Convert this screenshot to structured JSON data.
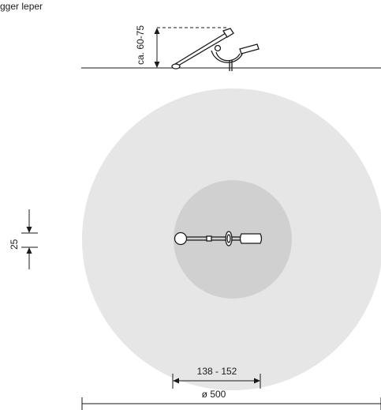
{
  "header_text": "gger leper",
  "dimensions": {
    "height_label": "ca. 60-75",
    "offset_label": "25",
    "span_label": "138 - 152",
    "diameter_label": "ø 500"
  },
  "colors": {
    "outer_zone": "#e6e6e6",
    "inner_zone": "#d0d0d0",
    "line": "#1a1a1a"
  }
}
